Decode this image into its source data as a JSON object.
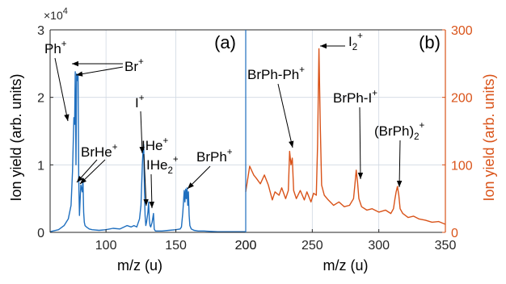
{
  "chart_data": [
    {
      "panel_label": "(a)",
      "type": "line",
      "color": "#1f6fbf",
      "xlabel": "m/z (u)",
      "ylabel": "Ion yield (arb. units)",
      "y_multiplier": "×10",
      "y_multiplier_exp": "4",
      "xlim": [
        60,
        200
      ],
      "ylim": [
        0,
        3
      ],
      "x_ticks": [
        100,
        150,
        200
      ],
      "y_ticks": [
        0,
        1,
        2,
        3
      ],
      "grid": true,
      "series": [
        {
          "x": [
            60,
            66,
            70,
            73,
            75,
            76,
            77,
            77.5,
            78,
            78.5,
            79,
            79.5,
            80,
            80.5,
            81,
            81.5,
            82,
            82.5,
            83,
            83.5,
            84,
            84.5,
            85,
            86,
            88,
            90,
            95,
            100,
            105,
            110,
            115,
            118,
            120,
            122,
            124,
            125,
            126,
            126.5,
            127,
            127.5,
            128,
            128.5,
            129,
            130,
            130.5,
            131,
            131.5,
            132,
            133,
            134,
            134.5,
            135,
            135.5,
            136,
            137,
            140,
            145,
            150,
            153,
            154,
            155,
            156,
            156.5,
            157,
            157.5,
            158,
            158.5,
            159,
            159.5,
            160,
            161,
            163,
            166,
            170,
            180,
            190,
            200
          ],
          "y": [
            0.01,
            0.04,
            0.1,
            0.2,
            0.4,
            0.9,
            1.7,
            1.6,
            2.38,
            1.0,
            2.35,
            2.25,
            2.32,
            0.8,
            0.25,
            0.5,
            0.7,
            0.65,
            0.6,
            0.8,
            0.3,
            0.15,
            0.1,
            0.08,
            0.05,
            0.04,
            0.03,
            0.04,
            0.06,
            0.05,
            0.1,
            0.08,
            0.1,
            0.08,
            0.2,
            0.4,
            1.0,
            1.2,
            1.3,
            0.6,
            0.25,
            0.1,
            0.15,
            0.3,
            0.45,
            0.2,
            0.1,
            0.08,
            0.15,
            0.28,
            0.05,
            0.03,
            0.02,
            0.02,
            0.02,
            0.02,
            0.03,
            0.04,
            0.05,
            0.08,
            0.3,
            0.62,
            0.45,
            0.64,
            0.5,
            0.66,
            0.4,
            0.6,
            0.25,
            0.1,
            0.05,
            0.03,
            0.02,
            0.02,
            0.01,
            0.01,
            0.01
          ]
        }
      ],
      "annotations": [
        {
          "text": "Ph",
          "sup": "+"
        },
        {
          "text": "Br",
          "sup": "+"
        },
        {
          "text": "BrHe",
          "sup": "+"
        },
        {
          "text": "I",
          "sup": "+"
        },
        {
          "text": "IHe",
          "sup": "+"
        },
        {
          "text": "IHe",
          "sub": "2",
          "sup": "+"
        },
        {
          "text": "BrPh",
          "sup": "+"
        }
      ]
    },
    {
      "panel_label": "(b)",
      "type": "line",
      "color": "#d95319",
      "xlabel": "m/z (u)",
      "ylabel": "Ion yield (arb. units)",
      "xlim": [
        200,
        350
      ],
      "ylim": [
        0,
        300
      ],
      "x_ticks": [
        200,
        250,
        300,
        350
      ],
      "y_ticks": [
        0,
        100,
        200,
        300
      ],
      "grid": true,
      "series": [
        {
          "x": [
            200,
            203,
            206,
            208,
            211,
            214,
            217,
            220,
            222,
            225,
            227,
            230,
            232,
            233,
            234,
            235,
            236,
            238,
            241,
            244,
            246,
            249,
            251,
            253,
            254,
            255,
            256,
            257,
            259,
            262,
            266,
            270,
            274,
            278,
            281,
            282,
            283,
            284,
            285,
            287,
            291,
            295,
            300,
            305,
            309,
            311,
            312,
            313,
            314,
            315,
            316,
            318,
            322,
            326,
            330,
            335,
            340,
            345,
            350
          ],
          "y": [
            60,
            98,
            85,
            80,
            72,
            85,
            70,
            48,
            60,
            55,
            66,
            50,
            62,
            120,
            100,
            110,
            62,
            50,
            62,
            48,
            60,
            45,
            58,
            55,
            130,
            272,
            160,
            70,
            55,
            48,
            40,
            45,
            38,
            40,
            50,
            70,
            92,
            75,
            50,
            38,
            33,
            35,
            30,
            33,
            28,
            35,
            48,
            60,
            68,
            55,
            35,
            28,
            22,
            24,
            20,
            18,
            15,
            16,
            12
          ]
        }
      ],
      "annotations": [
        {
          "text": "BrPh-Ph",
          "sup": "+"
        },
        {
          "text": "I",
          "sub": "2",
          "sup": "+"
        },
        {
          "text": "BrPh-I",
          "sup": "+"
        },
        {
          "text": "(BrPh)",
          "sub": "2",
          "sup": "+"
        }
      ]
    }
  ]
}
